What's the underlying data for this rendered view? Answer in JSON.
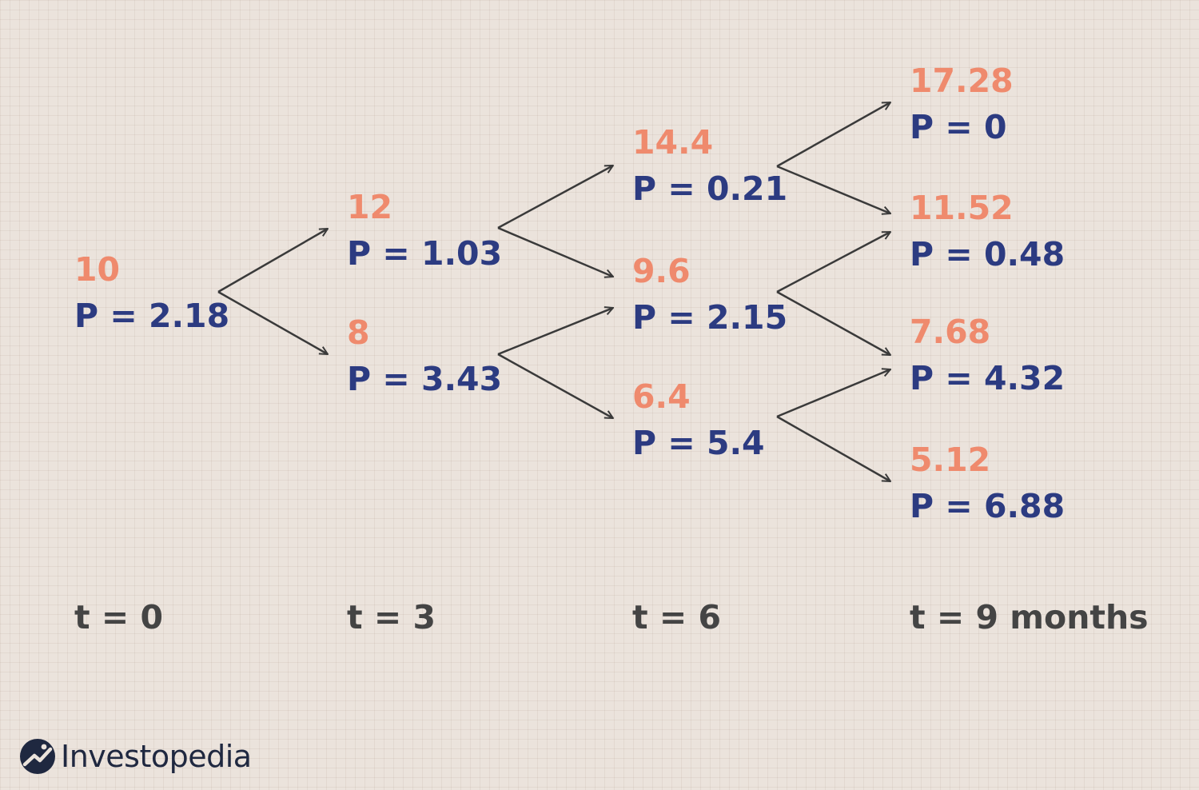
{
  "tree": {
    "t0": {
      "n0": {
        "price": "10",
        "option": "P = 2.18"
      }
    },
    "t3": {
      "up": {
        "price": "12",
        "option": "P = 1.03"
      },
      "down": {
        "price": "8",
        "option": "P = 3.43"
      }
    },
    "t6": {
      "upup": {
        "price": "14.4",
        "option": "P = 0.21"
      },
      "mid": {
        "price": "9.6",
        "option": "P = 2.15"
      },
      "downdown": {
        "price": "6.4",
        "option": "P = 5.4"
      }
    },
    "t9": {
      "n1": {
        "price": "17.28",
        "option": "P = 0"
      },
      "n2": {
        "price": "11.52",
        "option": "P = 0.48"
      },
      "n3": {
        "price": "7.68",
        "option": "P = 4.32"
      },
      "n4": {
        "price": "5.12",
        "option": "P = 6.88"
      }
    }
  },
  "time_labels": [
    "t = 0",
    "t = 3",
    "t = 6",
    "t = 9 months"
  ],
  "brand": {
    "name": "Investopedia"
  },
  "colors": {
    "background": "#ebe3dc",
    "price": "#ef8a6d",
    "option": "#2c3b81",
    "time_label": "#444444",
    "arrow": "#3a3a3a"
  }
}
